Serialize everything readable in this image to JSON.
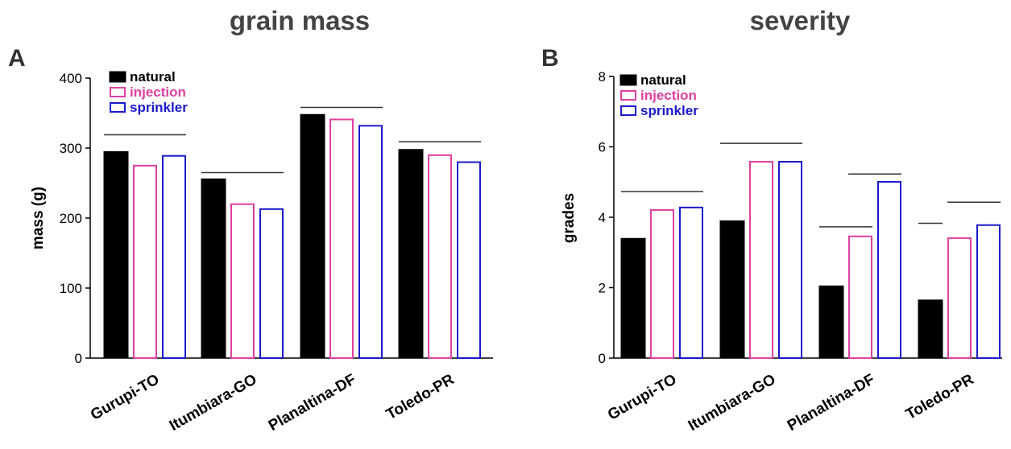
{
  "colors": {
    "natural": "#000000",
    "injection": "#e040a0",
    "sprinkler": "#1a1acc",
    "axis": "#000000",
    "sig_line": "#333333",
    "title": "#444444"
  },
  "chart_data": [
    {
      "panel": "A",
      "type": "bar",
      "title": "grain mass",
      "xlabel": "",
      "ylabel": "mass (g)",
      "ylim": [
        0,
        400
      ],
      "yticks": [
        0,
        100,
        200,
        300,
        400
      ],
      "categories": [
        "Gurupi-TO",
        "Itumbiara-GO",
        "Planaltina-DF",
        "Toledo-PR"
      ],
      "series": [
        {
          "name": "natural",
          "style": "filled",
          "values": [
            295,
            256,
            348,
            298
          ]
        },
        {
          "name": "injection",
          "style": "outline",
          "values": [
            276,
            221,
            342,
            291
          ]
        },
        {
          "name": "sprinkler",
          "style": "outline",
          "values": [
            290,
            214,
            333,
            281
          ]
        }
      ],
      "significance_lines": [
        {
          "category": 0,
          "from_series": 0,
          "to_series": 2,
          "y": 319
        },
        {
          "category": 1,
          "from_series": 0,
          "to_series": 2,
          "y": 265
        },
        {
          "category": 2,
          "from_series": 0,
          "to_series": 2,
          "y": 358
        },
        {
          "category": 3,
          "from_series": 0,
          "to_series": 2,
          "y": 309
        }
      ],
      "legend_position": "top-left"
    },
    {
      "panel": "B",
      "type": "bar",
      "title": "severity",
      "xlabel": "",
      "ylabel": "grades",
      "ylim": [
        0,
        8
      ],
      "yticks": [
        0,
        2,
        4,
        6,
        8
      ],
      "categories": [
        "Gurupi-TO",
        "Itumbiara-GO",
        "Planaltina-DF",
        "Toledo-PR"
      ],
      "series": [
        {
          "name": "natural",
          "style": "filled",
          "values": [
            3.4,
            3.9,
            2.05,
            1.65
          ]
        },
        {
          "name": "injection",
          "style": "outline",
          "values": [
            4.23,
            5.6,
            3.48,
            3.43
          ]
        },
        {
          "name": "sprinkler",
          "style": "outline",
          "values": [
            4.3,
            5.6,
            5.03,
            3.8
          ]
        }
      ],
      "significance_lines": [
        {
          "category": 0,
          "from_series": 0,
          "to_series": 2,
          "y": 4.73
        },
        {
          "category": 1,
          "from_series": 0,
          "to_series": 2,
          "y": 6.1
        },
        {
          "category": 2,
          "from_series": 0,
          "to_series": 1,
          "y": 3.73
        },
        {
          "category": 2,
          "from_series": 1,
          "to_series": 2,
          "y": 5.23
        },
        {
          "category": 3,
          "from_series": 0,
          "to_series": 0,
          "y": 3.83
        },
        {
          "category": 3,
          "from_series": 1,
          "to_series": 2,
          "y": 4.43
        }
      ],
      "legend_position": "top-left"
    }
  ]
}
